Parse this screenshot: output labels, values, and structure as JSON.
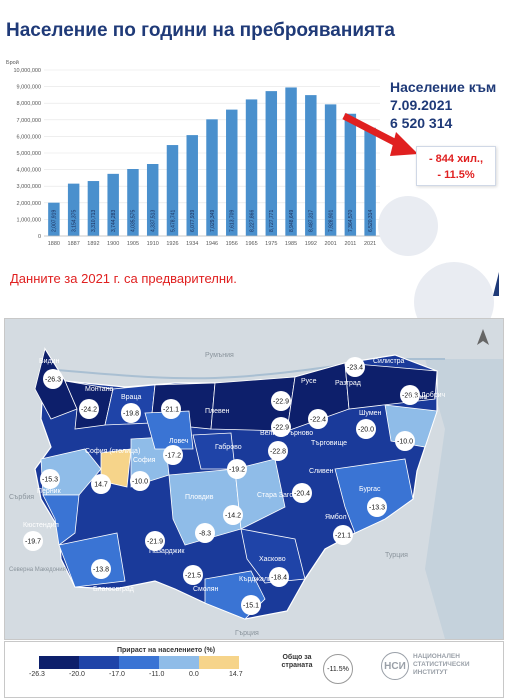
{
  "title": "Население по години на преброяванията",
  "population_box": {
    "line1": "Население към",
    "line2": "7.09.2021",
    "line3": "6 520 314"
  },
  "decline_box": {
    "line1": "- 844 хил.,",
    "line2": "- 11.5%"
  },
  "note": "Данните за 2021 г. са предварителни.",
  "chart_data": {
    "type": "bar",
    "ylabel": "Брой",
    "ylim": [
      0,
      10000000
    ],
    "yticks": [
      "0",
      "1,000,000",
      "2,000,000",
      "3,000,000",
      "4,000,000",
      "5,000,000",
      "6,000,000",
      "7,000,000",
      "8,000,000",
      "9,000,000",
      "10,000,000"
    ],
    "categories": [
      "1880",
      "1887",
      "1892",
      "1900",
      "1905",
      "1910",
      "1926",
      "1934",
      "1946",
      "1956",
      "1965",
      "1975",
      "1985",
      "1992",
      "2001",
      "2011",
      "2021"
    ],
    "values": [
      2007919,
      3154375,
      3310713,
      3744283,
      4035575,
      4337513,
      5478741,
      6077939,
      7029349,
      7613709,
      8227866,
      8727771,
      8948649,
      8487317,
      7928901,
      7364570,
      6520314
    ],
    "labels": [
      "2,007,919",
      "3,154,375",
      "3,310,713",
      "3,744,283",
      "4,035,575",
      "4,337,513",
      "5,478,741",
      "6,077,939",
      "7,029,349",
      "7,613,709",
      "8,227,866",
      "8,727,771",
      "8,948,649",
      "8,487,317",
      "7,928,901",
      "7,364,570",
      "6,520,314"
    ],
    "bar_color": "#4a90cd",
    "grid": true
  },
  "map": {
    "regions": [
      {
        "name": "Видин",
        "value": "-26.3"
      },
      {
        "name": "Монтана",
        "value": "-24.2"
      },
      {
        "name": "Враца",
        "value": "-19.8"
      },
      {
        "name": "Плевен",
        "value": "-21.1"
      },
      {
        "name": "Русе",
        "value": "-22.9"
      },
      {
        "name": "Разград",
        "value": "-22.4"
      },
      {
        "name": "Силистра",
        "value": "-23.4"
      },
      {
        "name": "Добрич",
        "value": "-26.3"
      },
      {
        "name": "Шумен",
        "value": "-20.0"
      },
      {
        "name": "Варна",
        "value": "-10.0"
      },
      {
        "name": "Велико Търново",
        "value": "-22.9"
      },
      {
        "name": "Търговище",
        "value": "-22.8"
      },
      {
        "name": "Ловеч",
        "value": "-17.2"
      },
      {
        "name": "Габрово",
        "value": "-19.2"
      },
      {
        "name": "София",
        "value": "-10.0"
      },
      {
        "name": "София (столица)",
        "value": "14.7"
      },
      {
        "name": "Перник",
        "value": "-15.3"
      },
      {
        "name": "Кюстендил",
        "value": "-19.7"
      },
      {
        "name": "Благоевград",
        "value": "-13.8"
      },
      {
        "name": "Пазарджик",
        "value": "-21.9"
      },
      {
        "name": "Пловдив",
        "value": "-8.3"
      },
      {
        "name": "Смолян",
        "value": "-21.5"
      },
      {
        "name": "Стара Загора",
        "value": "-14.2"
      },
      {
        "name": "Сливен",
        "value": "-20.4"
      },
      {
        "name": "Ямбол",
        "value": "-21.1"
      },
      {
        "name": "Бургас",
        "value": "-13.3"
      },
      {
        "name": "Хасково",
        "value": "-18.4"
      },
      {
        "name": "Кърджали",
        "value": "-15.1"
      }
    ],
    "neighbors": [
      "Румъния",
      "Сърбия",
      "Северна Македония",
      "Гърция",
      "Турция"
    ]
  },
  "legend": {
    "title": "Прираст на населението (%)",
    "ticks": [
      "-26.3",
      "-20.0",
      "-17.0",
      "-11.0",
      "0.0",
      "14.7"
    ],
    "colors": [
      "#0d1f6b",
      "#1f44a8",
      "#3a74d4",
      "#8fbce8",
      "#f6d48a"
    ],
    "country_label": "Общо за страната",
    "country_value": "-11.5%",
    "institute": [
      "НАЦИОНАЛЕН",
      "СТАТИСТИЧЕСКИ",
      "ИНСТИТУТ"
    ]
  }
}
